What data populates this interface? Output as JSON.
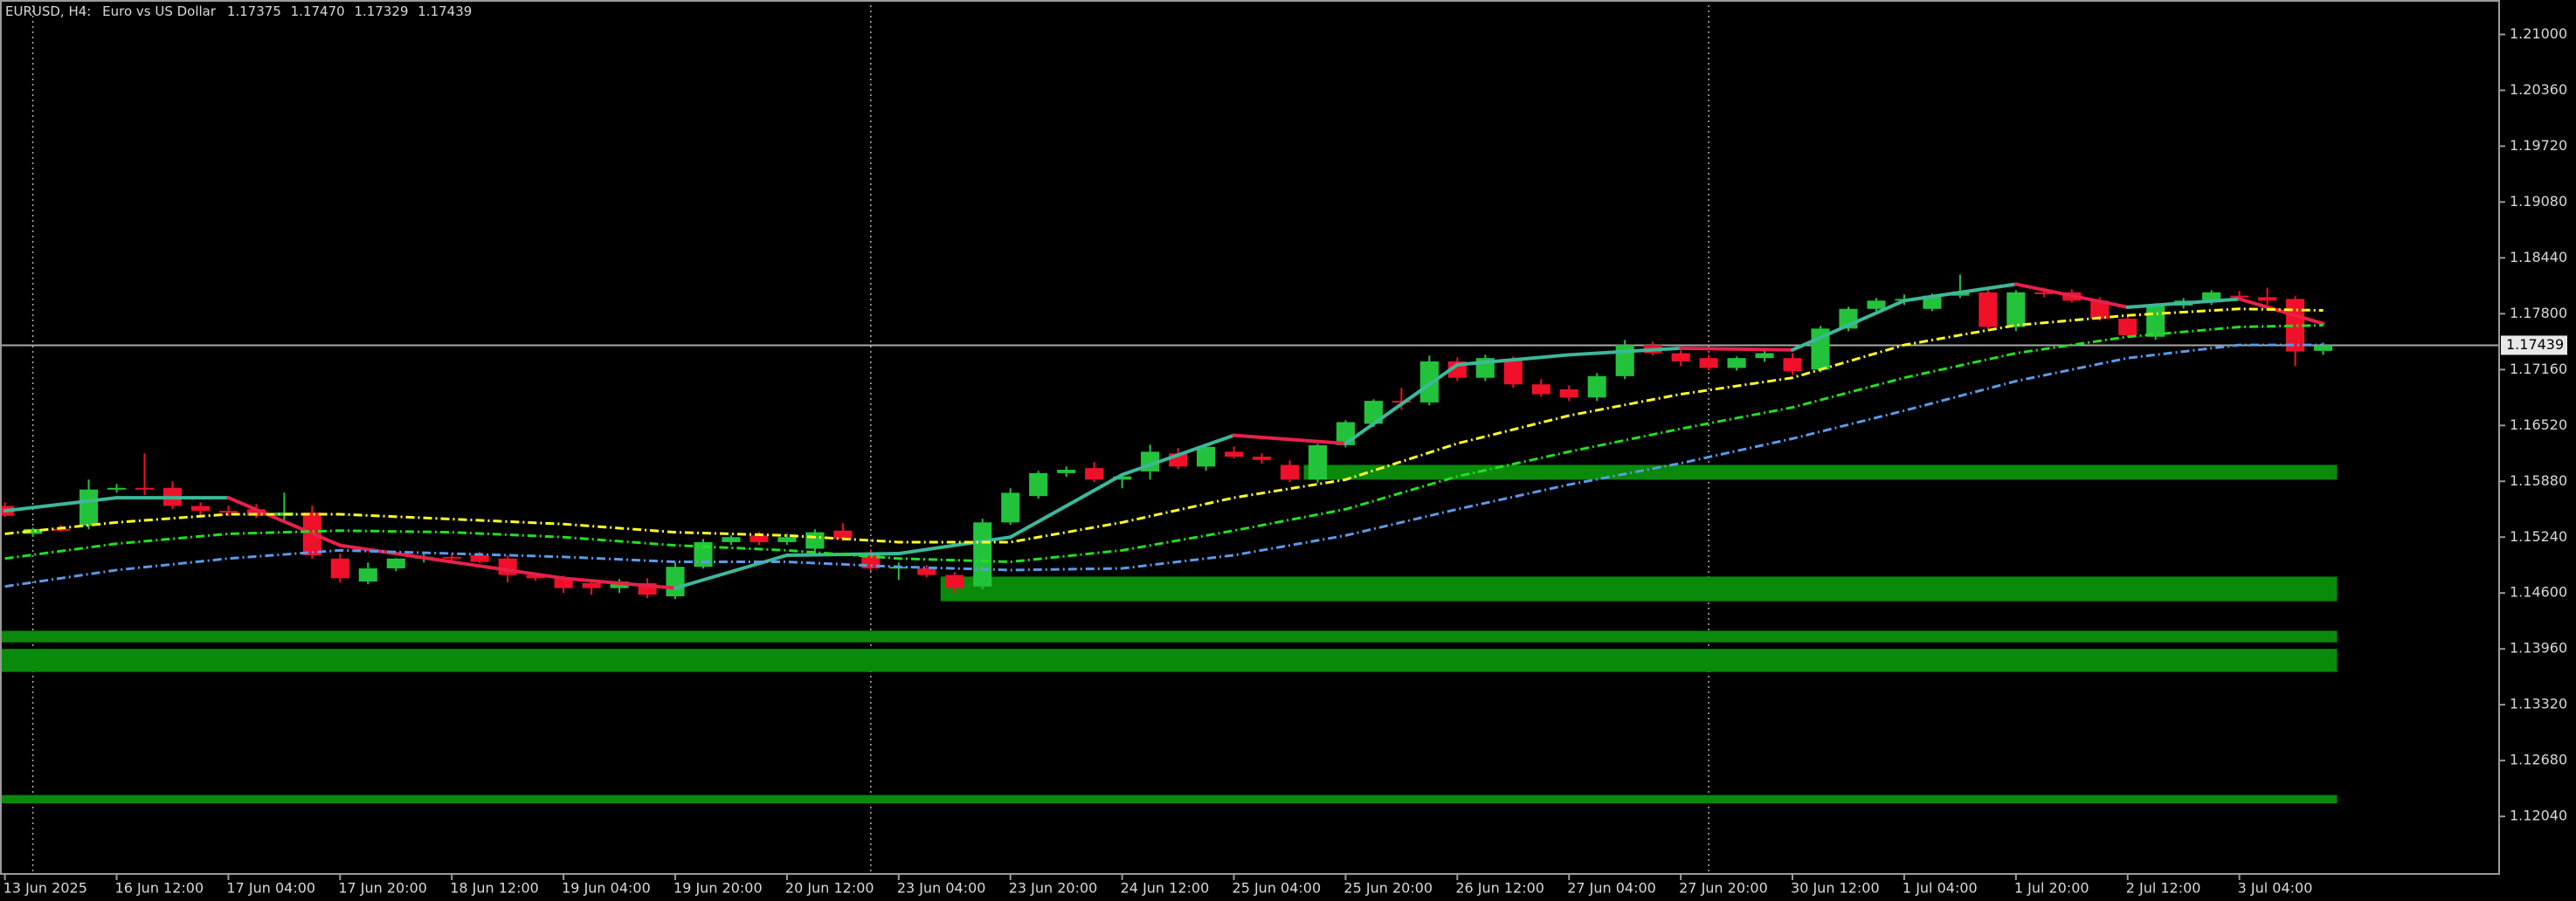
{
  "chart_data": {
    "type": "candlestick",
    "symbol": "EURUSD, H4:",
    "description": "Euro vs US Dollar",
    "ohlc_labels": [
      "1.17375",
      "1.17470",
      "1.17329",
      "1.17439"
    ],
    "up_color": "#22c33b",
    "down_color": "#f0102a",
    "xlim": [
      -0.176,
      89.3
    ],
    "ylim": [
      1.11381,
      1.21395
    ],
    "xticks": [
      {
        "value": 0,
        "label": "13 Jun 2025"
      },
      {
        "value": 4,
        "label": "16 Jun 12:00"
      },
      {
        "value": 8,
        "label": "17 Jun 04:00"
      },
      {
        "value": 12,
        "label": "17 Jun 20:00"
      },
      {
        "value": 16,
        "label": "18 Jun 12:00"
      },
      {
        "value": 20,
        "label": "19 Jun 04:00"
      },
      {
        "value": 24,
        "label": "19 Jun 20:00"
      },
      {
        "value": 28,
        "label": "20 Jun 12:00"
      },
      {
        "value": 32,
        "label": "23 Jun 04:00"
      },
      {
        "value": 36,
        "label": "23 Jun 20:00"
      },
      {
        "value": 40,
        "label": "24 Jun 12:00"
      },
      {
        "value": 44,
        "label": "25 Jun 04:00"
      },
      {
        "value": 48,
        "label": "25 Jun 20:00"
      },
      {
        "value": 52,
        "label": "26 Jun 12:00"
      },
      {
        "value": 56,
        "label": "27 Jun 04:00"
      },
      {
        "value": 60,
        "label": "27 Jun 20:00"
      },
      {
        "value": 64,
        "label": "30 Jun 12:00"
      },
      {
        "value": 68,
        "label": "1 Jul 04:00"
      },
      {
        "value": 72,
        "label": "1 Jul 20:00"
      },
      {
        "value": 76,
        "label": "2 Jul 12:00"
      },
      {
        "value": 80,
        "label": "3 Jul 04:00"
      }
    ],
    "yticks": [
      {
        "value": 1.21,
        "label": "1.21000"
      },
      {
        "value": 1.2036,
        "label": "1.20360"
      },
      {
        "value": 1.1972,
        "label": "1.19720"
      },
      {
        "value": 1.1908,
        "label": "1.19080"
      },
      {
        "value": 1.1844,
        "label": "1.18440"
      },
      {
        "value": 1.178,
        "label": "1.17800"
      },
      {
        "value": 1.1716,
        "label": "1.17160"
      },
      {
        "value": 1.1652,
        "label": "1.16520"
      },
      {
        "value": 1.1588,
        "label": "1.15880"
      },
      {
        "value": 1.1524,
        "label": "1.15240"
      },
      {
        "value": 1.146,
        "label": "1.14600"
      },
      {
        "value": 1.1396,
        "label": "1.13960"
      },
      {
        "value": 1.1332,
        "label": "1.13320"
      },
      {
        "value": 1.1268,
        "label": "1.12680"
      },
      {
        "value": 1.1204,
        "label": "1.12040"
      }
    ],
    "last": {
      "value": 1.17439,
      "label": "1.17439"
    },
    "candles": [
      [
        1.15598,
        1.1564,
        1.1547,
        1.15485
      ],
      [
        1.15278,
        1.1535,
        1.1524,
        1.15334
      ],
      [
        1.15334,
        1.1538,
        1.153,
        1.15315
      ],
      [
        1.15372,
        1.159,
        1.1533,
        1.15786
      ],
      [
        1.15786,
        1.1585,
        1.1575,
        1.15805
      ],
      [
        1.15805,
        1.162,
        1.1572,
        1.15786
      ],
      [
        1.15805,
        1.1588,
        1.1556,
        1.15598
      ],
      [
        1.15598,
        1.1564,
        1.1548,
        1.15541
      ],
      [
        1.15541,
        1.156,
        1.1548,
        1.15522
      ],
      [
        1.1556,
        1.1562,
        1.1546,
        1.15485
      ],
      [
        1.15485,
        1.1575,
        1.154,
        1.15522
      ],
      [
        1.15522,
        1.156,
        1.1499,
        1.15033
      ],
      [
        1.14995,
        1.1505,
        1.1472,
        1.14769
      ],
      [
        1.14731,
        1.1495,
        1.147,
        1.14882
      ],
      [
        1.14882,
        1.15,
        1.1485,
        1.14995
      ],
      [
        1.14995,
        1.1505,
        1.1495,
        1.15014
      ],
      [
        1.15014,
        1.1505,
        1.1496,
        1.14995
      ],
      [
        1.15033,
        1.1507,
        1.1494,
        1.14957
      ],
      [
        1.14995,
        1.1503,
        1.1472,
        1.14807
      ],
      [
        1.14807,
        1.1483,
        1.1474,
        1.14769
      ],
      [
        1.14769,
        1.148,
        1.146,
        1.14656
      ],
      [
        1.14713,
        1.1475,
        1.1458,
        1.14656
      ],
      [
        1.14656,
        1.1476,
        1.146,
        1.14731
      ],
      [
        1.14713,
        1.1477,
        1.1454,
        1.14581
      ],
      [
        1.14562,
        1.1495,
        1.1453,
        1.149
      ],
      [
        1.149,
        1.1522,
        1.1488,
        1.15183
      ],
      [
        1.15183,
        1.1526,
        1.1515,
        1.1524
      ],
      [
        1.15259,
        1.153,
        1.1515,
        1.15183
      ],
      [
        1.15183,
        1.1528,
        1.1515,
        1.1524
      ],
      [
        1.15108,
        1.1533,
        1.1505,
        1.15296
      ],
      [
        1.15315,
        1.154,
        1.152,
        1.15221
      ],
      [
        1.15033,
        1.151,
        1.1485,
        1.14882
      ],
      [
        1.14882,
        1.1495,
        1.1475,
        1.149
      ],
      [
        1.14882,
        1.1492,
        1.1478,
        1.14807
      ],
      [
        1.14807,
        1.1484,
        1.146,
        1.14656
      ],
      [
        1.14675,
        1.1545,
        1.1464,
        1.15409
      ],
      [
        1.15409,
        1.158,
        1.1538,
        1.15748
      ],
      [
        1.15711,
        1.16,
        1.1568,
        1.15974
      ],
      [
        1.15974,
        1.1605,
        1.1593,
        1.16012
      ],
      [
        1.16031,
        1.161,
        1.1587,
        1.15899
      ],
      [
        1.15899,
        1.1596,
        1.158,
        1.15936
      ],
      [
        1.15993,
        1.163,
        1.159,
        1.16219
      ],
      [
        1.162,
        1.1626,
        1.1602,
        1.16049
      ],
      [
        1.16049,
        1.163,
        1.16,
        1.16275
      ],
      [
        1.16219,
        1.1628,
        1.1614,
        1.16162
      ],
      [
        1.16162,
        1.162,
        1.1608,
        1.16125
      ],
      [
        1.16068,
        1.1612,
        1.1587,
        1.15899
      ],
      [
        1.15899,
        1.1631,
        1.1586,
        1.16294
      ],
      [
        1.16294,
        1.1658,
        1.1627,
        1.16558
      ],
      [
        1.16539,
        1.1682,
        1.165,
        1.16802
      ],
      [
        1.16802,
        1.1695,
        1.167,
        1.16784
      ],
      [
        1.16784,
        1.1732,
        1.1675,
        1.17254
      ],
      [
        1.17254,
        1.173,
        1.1703,
        1.17066
      ],
      [
        1.17066,
        1.1733,
        1.1703,
        1.17292
      ],
      [
        1.17273,
        1.1731,
        1.1695,
        1.16991
      ],
      [
        1.16991,
        1.1705,
        1.1685,
        1.16878
      ],
      [
        1.16934,
        1.1698,
        1.168,
        1.1684
      ],
      [
        1.1684,
        1.1712,
        1.168,
        1.17085
      ],
      [
        1.17085,
        1.175,
        1.1705,
        1.17442
      ],
      [
        1.17442,
        1.1748,
        1.1732,
        1.17348
      ],
      [
        1.17348,
        1.1738,
        1.172,
        1.17254
      ],
      [
        1.17292,
        1.1733,
        1.1715,
        1.17179
      ],
      [
        1.17179,
        1.1731,
        1.1715,
        1.17292
      ],
      [
        1.17292,
        1.174,
        1.1725,
        1.17348
      ],
      [
        1.17292,
        1.1735,
        1.171,
        1.17141
      ],
      [
        1.1716,
        1.1766,
        1.1713,
        1.1763
      ],
      [
        1.1763,
        1.1788,
        1.176,
        1.17856
      ],
      [
        1.17856,
        1.1798,
        1.1783,
        1.1795
      ],
      [
        1.1795,
        1.1802,
        1.179,
        1.1797
      ],
      [
        1.17856,
        1.1803,
        1.1783,
        1.18007
      ],
      [
        1.18007,
        1.1825,
        1.1798,
        1.18045
      ],
      [
        1.18045,
        1.1808,
        1.1762,
        1.17649
      ],
      [
        1.17649,
        1.1807,
        1.176,
        1.18045
      ],
      [
        1.18045,
        1.181,
        1.1799,
        1.1803
      ],
      [
        1.18045,
        1.1808,
        1.1793,
        1.1795
      ],
      [
        1.1795,
        1.1799,
        1.1772,
        1.17743
      ],
      [
        1.17743,
        1.1778,
        1.1753,
        1.17555
      ],
      [
        1.17536,
        1.1792,
        1.175,
        1.17894
      ],
      [
        1.17894,
        1.1798,
        1.1786,
        1.1795
      ],
      [
        1.1793,
        1.1807,
        1.179,
        1.18045
      ],
      [
        1.18007,
        1.1806,
        1.1796,
        1.1799
      ],
      [
        1.1799,
        1.181,
        1.179,
        1.1795
      ],
      [
        1.1797,
        1.18,
        1.172,
        1.17367
      ],
      [
        1.17375,
        1.1747,
        1.17329,
        1.17439
      ]
    ],
    "zones": [
      {
        "from": 47,
        "top": 1.16068,
        "bottom": 1.15899,
        "color": "#0a8a0a"
      },
      {
        "from": 34,
        "top": 1.14788,
        "bottom": 1.14506,
        "color": "#0a8a0a"
      },
      {
        "from": 0,
        "top": 1.14167,
        "bottom": 1.14035,
        "color": "#0a8a0a"
      },
      {
        "from": 0,
        "top": 1.1396,
        "bottom": 1.13696,
        "color": "#0a8a0a"
      },
      {
        "from": 0,
        "top": 1.12285,
        "bottom": 1.1219,
        "color": "#0a8a0a"
      }
    ],
    "zone_end": 83,
    "ma_x": [
      0,
      4,
      8,
      12,
      16,
      20,
      24,
      28,
      32,
      36,
      40,
      44,
      48,
      52,
      56,
      60,
      64,
      68,
      72,
      76,
      80,
      83
    ],
    "indicators": [
      {
        "up_color": "#3cb89a",
        "down_color": "#e8204a",
        "dash": "solid",
        "values": [
          1.15541,
          1.15692,
          1.15692,
          1.15146,
          1.14957,
          1.14769,
          1.14656,
          1.15033,
          1.15052,
          1.1524,
          1.15955,
          1.16407,
          1.16313,
          1.17216,
          1.17329,
          1.17405,
          1.17386,
          1.1795,
          1.18139,
          1.17875,
          1.17969,
          1.17687
        ]
      },
      {
        "color": "#ffff20",
        "dash": "dashdot",
        "values": [
          1.15278,
          1.15409,
          1.15503,
          1.15503,
          1.15447,
          1.1539,
          1.15296,
          1.15259,
          1.15183,
          1.15183,
          1.15409,
          1.15692,
          1.15899,
          1.16313,
          1.16633,
          1.16878,
          1.17066,
          1.17442,
          1.17668,
          1.17781,
          1.17856,
          1.17838
        ]
      },
      {
        "color": "#20e020",
        "dash": "dashdot",
        "values": [
          1.14995,
          1.15165,
          1.15278,
          1.15315,
          1.15296,
          1.1524,
          1.15146,
          1.15089,
          1.14995,
          1.14957,
          1.15089,
          1.15315,
          1.1556,
          1.15936,
          1.16219,
          1.16482,
          1.16727,
          1.17066,
          1.17348,
          1.17536,
          1.17649,
          1.17668
        ]
      },
      {
        "color": "#5a9ae8",
        "dash": "dashdot",
        "values": [
          1.14675,
          1.14863,
          1.14995,
          1.15089,
          1.15052,
          1.15014,
          1.14957,
          1.14957,
          1.149,
          1.14863,
          1.14882,
          1.15033,
          1.15259,
          1.1556,
          1.15842,
          1.16087,
          1.16369,
          1.16689,
          1.17028,
          1.17292,
          1.17442,
          1.17442
        ]
      }
    ]
  }
}
